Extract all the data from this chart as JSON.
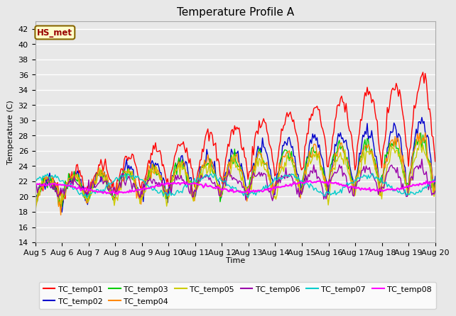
{
  "title": "Temperature Profile A",
  "xlabel": "Time",
  "ylabel": "Temperature (C)",
  "ylim": [
    14,
    43
  ],
  "xtick_labels": [
    "Aug 5",
    "Aug 6",
    "Aug 7",
    "Aug 8",
    "Aug 9",
    "Aug 10",
    "Aug 11",
    "Aug 12",
    "Aug 13",
    "Aug 14",
    "Aug 15",
    "Aug 16",
    "Aug 17",
    "Aug 18",
    "Aug 19",
    "Aug 20"
  ],
  "annotation_text": "HS_met",
  "annotation_bg": "#ffffcc",
  "annotation_border": "#886600",
  "annotation_textcolor": "#990000",
  "series_colors": {
    "TC_temp01": "#ff0000",
    "TC_temp02": "#0000cc",
    "TC_temp03": "#00cc00",
    "TC_temp04": "#ff8800",
    "TC_temp05": "#cccc00",
    "TC_temp06": "#9900aa",
    "TC_temp07": "#00cccc",
    "TC_temp08": "#ff00ff"
  },
  "plot_bg": "#e8e8e8",
  "fig_bg": "#e8e8e8",
  "title_fontsize": 11,
  "axis_fontsize": 8,
  "legend_fontsize": 8
}
